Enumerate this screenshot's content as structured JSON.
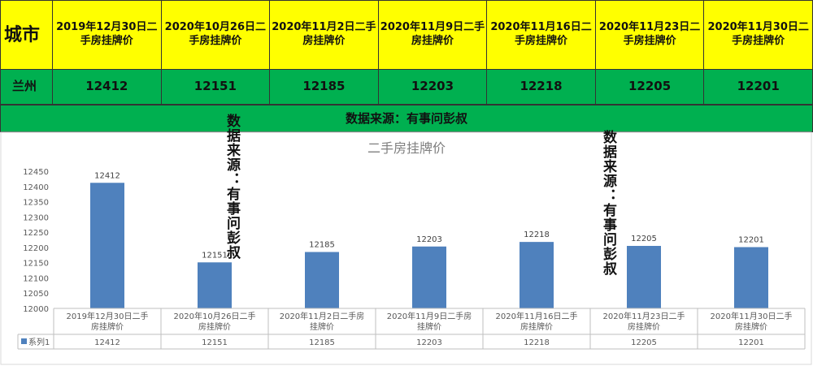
{
  "table": {
    "city_header": "城市",
    "headers": [
      "2019年12月30日二手房挂牌价",
      "2020年10月26日二手房挂牌价",
      "2020年11月2日二手房挂牌价",
      "2020年11月9日二手房挂牌价",
      "2020年11月16日二手房挂牌价",
      "2020年11月23日二手房挂牌价",
      "2020年11月30日二手房挂牌价"
    ],
    "row_city": "兰州",
    "row_values": [
      "12412",
      "12151",
      "12185",
      "12203",
      "12218",
      "12205",
      "12201"
    ]
  },
  "source_text": "数据来源：有事问彭叔",
  "watermark": "数据来源：有事问彭叔",
  "colors": {
    "header_bg": "#ffff00",
    "row_bg": "#00b050",
    "bar": "#4f81bd"
  },
  "chart_data": {
    "type": "bar",
    "title": "二手房挂牌价",
    "categories": [
      "2019年12月30日二手房挂牌价",
      "2020年10月26日二手房挂牌价",
      "2020年11月2日二手房挂牌价",
      "2020年11月9日二手房挂牌价",
      "2020年11月16日二手房挂牌价",
      "2020年11月23日二手房挂牌价",
      "2020年11月30日二手房挂牌价"
    ],
    "series": [
      {
        "name": "系列1",
        "values": [
          12412,
          12151,
          12185,
          12203,
          12218,
          12205,
          12201
        ]
      }
    ],
    "ylim": [
      12000,
      12450
    ],
    "yticks": [
      12000,
      12050,
      12100,
      12150,
      12200,
      12250,
      12300,
      12350,
      12400,
      12450
    ],
    "data_labels": true,
    "legend": "data-table",
    "grid": false
  }
}
